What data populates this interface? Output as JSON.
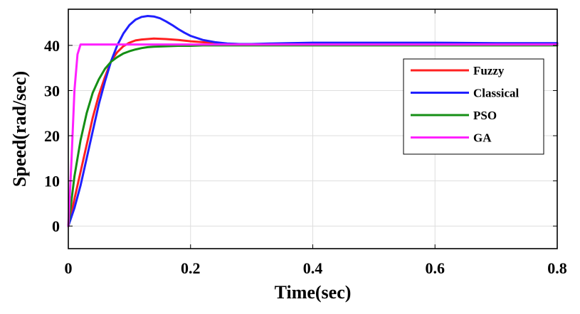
{
  "chart_data": {
    "type": "line",
    "xlabel": "Time(sec)",
    "ylabel": "Speed(rad/sec)",
    "xlim": [
      0,
      0.8
    ],
    "ylim": [
      -5,
      48
    ],
    "xticks": [
      0,
      0.2,
      0.4,
      0.6,
      0.8
    ],
    "xtick_labels": [
      "0",
      "0.2",
      "0.4",
      "0.6",
      "0.8"
    ],
    "yticks": [
      0,
      10,
      20,
      30,
      40
    ],
    "ytick_labels": [
      "0",
      "10",
      "20",
      "30",
      "40"
    ],
    "grid": true,
    "legend_position": "right",
    "series": [
      {
        "name": "Fuzzy",
        "color": "#ff2020",
        "x": [
          0,
          0.01,
          0.02,
          0.03,
          0.04,
          0.05,
          0.06,
          0.07,
          0.08,
          0.09,
          0.1,
          0.11,
          0.12,
          0.14,
          0.16,
          0.18,
          0.2,
          0.22,
          0.25,
          0.3,
          0.35,
          0.4,
          0.5,
          0.6,
          0.7,
          0.8
        ],
        "y": [
          0,
          6,
          12,
          18,
          24,
          29,
          33,
          36.5,
          38.5,
          39.8,
          40.6,
          41.1,
          41.3,
          41.5,
          41.4,
          41.2,
          40.9,
          40.7,
          40.4,
          40.2,
          40.2,
          40.2,
          40.2,
          40.2,
          40.2,
          40.2
        ]
      },
      {
        "name": "Classical",
        "color": "#2020ff",
        "x": [
          0,
          0.01,
          0.02,
          0.03,
          0.04,
          0.05,
          0.06,
          0.07,
          0.08,
          0.09,
          0.1,
          0.11,
          0.12,
          0.13,
          0.14,
          0.15,
          0.16,
          0.17,
          0.18,
          0.19,
          0.2,
          0.22,
          0.24,
          0.26,
          0.28,
          0.3,
          0.33,
          0.36,
          0.4,
          0.5,
          0.6,
          0.7,
          0.8
        ],
        "y": [
          0,
          4,
          9,
          15,
          21,
          27,
          32,
          36.5,
          40,
          42.6,
          44.5,
          45.7,
          46.3,
          46.5,
          46.4,
          46.0,
          45.3,
          44.5,
          43.6,
          42.8,
          42.1,
          41.2,
          40.7,
          40.4,
          40.3,
          40.3,
          40.4,
          40.5,
          40.6,
          40.6,
          40.6,
          40.5,
          40.5
        ]
      },
      {
        "name": "PSO",
        "color": "#158f15",
        "x": [
          0,
          0.01,
          0.02,
          0.03,
          0.04,
          0.05,
          0.06,
          0.07,
          0.08,
          0.09,
          0.1,
          0.11,
          0.12,
          0.13,
          0.14,
          0.16,
          0.18,
          0.2,
          0.22,
          0.25,
          0.3,
          0.4,
          0.5,
          0.6,
          0.7,
          0.8
        ],
        "y": [
          0,
          11,
          19,
          25,
          29.5,
          32.5,
          34.8,
          36.4,
          37.4,
          38.2,
          38.7,
          39.1,
          39.4,
          39.6,
          39.7,
          39.8,
          39.9,
          39.9,
          40.0,
          40.0,
          40.0,
          40.0,
          40.0,
          40.0,
          40.0,
          40.0
        ]
      },
      {
        "name": "GA",
        "color": "#ff20ff",
        "x": [
          0,
          0.005,
          0.01,
          0.015,
          0.02,
          0.025,
          0.03,
          0.1,
          0.2,
          0.4,
          0.6,
          0.8
        ],
        "y": [
          0,
          14,
          30,
          38,
          40.2,
          40.2,
          40.2,
          40.2,
          40.2,
          40.2,
          40.2,
          40.2
        ]
      }
    ]
  }
}
